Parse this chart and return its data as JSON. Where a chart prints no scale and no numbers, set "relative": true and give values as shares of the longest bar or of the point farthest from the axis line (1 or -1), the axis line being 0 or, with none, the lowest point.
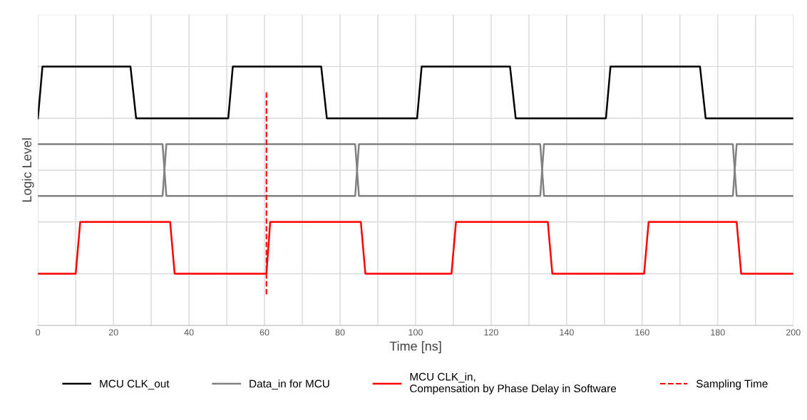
{
  "chart_data": {
    "type": "line",
    "relative": true,
    "xlabel": "Time [ns]",
    "ylabel": "Logic Level",
    "xlim": [
      0,
      200
    ],
    "xticks": [
      0,
      {
        "value": 10,
        "label": null
      },
      20,
      {
        "value": 30,
        "label": null
      },
      40,
      {
        "value": 50,
        "label": null
      },
      60,
      {
        "value": 70,
        "label": null
      },
      80,
      {
        "value": 90,
        "label": null
      },
      100,
      {
        "value": 110,
        "label": null
      },
      120,
      {
        "value": 130,
        "label": null
      },
      140,
      {
        "value": 150,
        "label": null
      },
      160,
      {
        "value": 170,
        "label": null
      },
      180,
      {
        "value": 190,
        "label": null
      },
      200
    ],
    "tick_labels": "x",
    "grid": true,
    "legend": "bottom",
    "marker": "none",
    "line_style": "solid",
    "series": [
      {
        "name": "MCU CLK_out",
        "color": "#000000",
        "x": [
          0,
          1.2,
          24.5,
          26,
          50.4,
          51.6,
          75,
          76.5,
          100.4,
          101.6,
          125,
          126.5,
          150.4,
          151.6,
          175.3,
          176.8,
          200
        ],
        "values": [
          0.8,
          1,
          1,
          0.8,
          0.8,
          1,
          1,
          0.8,
          0.8,
          1,
          1,
          0.8,
          0.8,
          1,
          1,
          0.8,
          0.8
        ]
      },
      {
        "name": "Data_in for MCU",
        "color": "#808080",
        "x": [
          0,
          33,
          34,
          84,
          85,
          133,
          134,
          184,
          185,
          200
        ],
        "values": [
          0.7,
          0.7,
          0.5,
          0.5,
          0.7,
          0.7,
          0.5,
          0.5,
          0.7,
          0.7
        ]
      },
      {
        "color": "#808080",
        "x": [
          0,
          33,
          34,
          84,
          85,
          133,
          134,
          184,
          185,
          200
        ],
        "values": [
          0.5,
          0.5,
          0.7,
          0.7,
          0.5,
          0.5,
          0.7,
          0.7,
          0.5,
          0.5
        ]
      },
      {
        "name": "MCU CLK_in,\nCompensation by Phase Delay in Software",
        "color": "#ff0000",
        "x": [
          0,
          10,
          11.2,
          35,
          36.2,
          60.5,
          61.5,
          85.5,
          86.7,
          109.5,
          110.7,
          135,
          136.2,
          160.5,
          161.7,
          185,
          186.2,
          200
        ],
        "values": [
          0.2,
          0.2,
          0.4,
          0.4,
          0.2,
          0.2,
          0.4,
          0.4,
          0.2,
          0.2,
          0.4,
          0.4,
          0.2,
          0.2,
          0.4,
          0.4,
          0.2,
          0.2
        ]
      }
    ],
    "ref_lines": [
      {
        "axis": "x",
        "value": 60.5,
        "label": "Sampling Time",
        "color": "#ff0000",
        "line_style": "dashed"
      }
    ]
  }
}
